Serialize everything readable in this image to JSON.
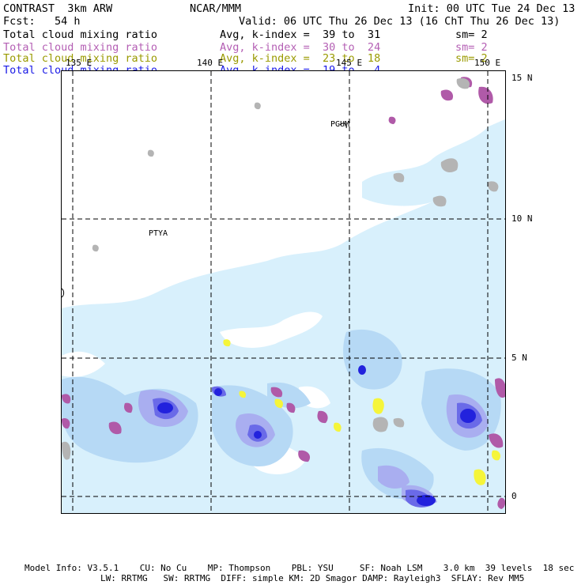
{
  "header": {
    "left_line1": "CONTRAST  3km ARW",
    "center_line1": "NCAR/MMM",
    "right_line1": "Init: 00 UTC Tue 24 Dec 13",
    "left_line2": "Fcst:   54 h",
    "right_line2": "Valid: 06 UTC Thu 26 Dec 13 (16 ChT Thu 26 Dec 13)",
    "fields": [
      {
        "name": "Total cloud mixing ratio",
        "range": "Avg, k-index =  39 to  31",
        "sm": "sm= 2",
        "color": "#000000"
      },
      {
        "name": "Total cloud mixing ratio",
        "range": "Avg, k-index =  30 to  24",
        "sm": "sm= 2",
        "color": "#b45fb4"
      },
      {
        "name": "Total cloud mixing ratio",
        "range": "Avg, k-index =  23 to  18",
        "sm": "sm= 2",
        "color": "#9a9a00"
      },
      {
        "name": "Total cloud mixing ratio",
        "range": "Avg, k-index =  19 to   4",
        "sm": "",
        "color": "#1a1ae6"
      }
    ]
  },
  "map": {
    "lon_labels": [
      "135 E",
      "140 E",
      "145 E",
      "150 E"
    ],
    "lat_labels": [
      "15 N",
      "10 N",
      "5 N",
      "0"
    ],
    "stations": [
      "PGUM",
      "PTYA"
    ],
    "colors": {
      "level1_lightblue": "#d8f0fc",
      "level2_midblue": "#b6d9f5",
      "level3_lavender": "#a9aef0",
      "level4_blue": "#6a6ae8",
      "level5_darkblue": "#2222dd",
      "violet": "#b05aa8",
      "yellow": "#f5f53a",
      "gray": "#b4b4b4"
    }
  },
  "footer": {
    "line1": "Model Info: V3.5.1    CU: No Cu    MP: Thompson    PBL: YSU     SF: Noah LSM    3.0 km  39 levels  18 sec",
    "line2": "LW: RRTMG   SW: RRTMG  DIFF: simple KM: 2D Smagor DAMP: Rayleigh3  SFLAY: Rev MM5"
  }
}
